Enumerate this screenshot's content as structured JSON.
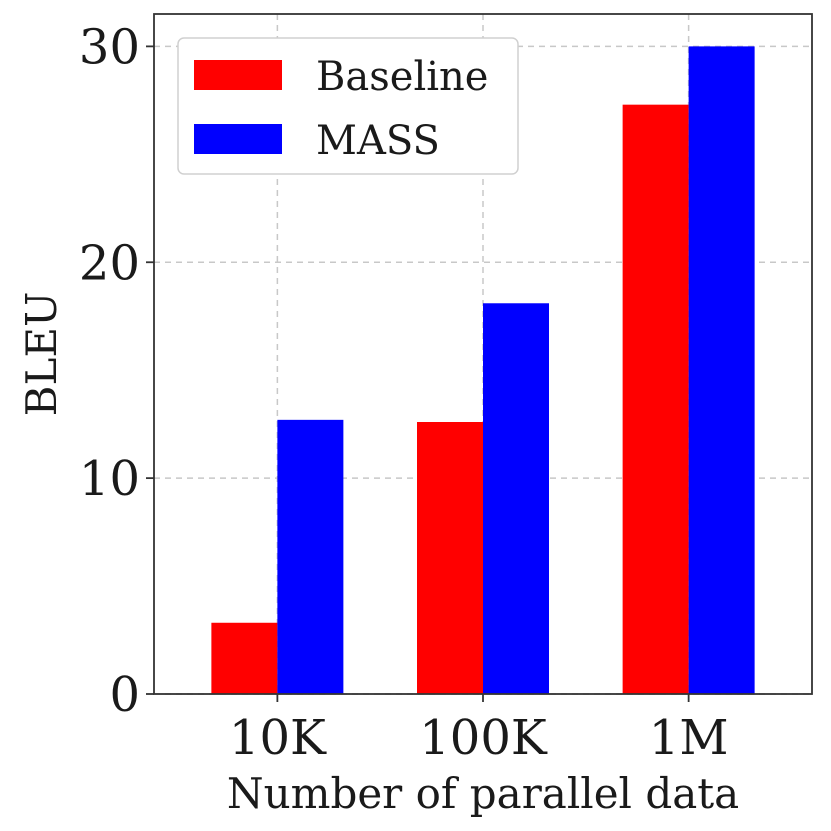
{
  "chart_data": {
    "type": "bar",
    "title": "",
    "xlabel": "Number of parallel data",
    "ylabel": "BLEU",
    "categories": [
      "10K",
      "100K",
      "1M"
    ],
    "series": [
      {
        "name": "Baseline",
        "color": "#ff0000",
        "values": [
          3.3,
          12.6,
          27.3
        ]
      },
      {
        "name": "MASS",
        "color": "#0000ff",
        "values": [
          12.7,
          18.1,
          30.0
        ]
      }
    ],
    "ylim": [
      0,
      31.5
    ],
    "yticks": [
      0,
      10,
      20,
      30
    ],
    "grid": true,
    "legend_position": "top-left"
  }
}
